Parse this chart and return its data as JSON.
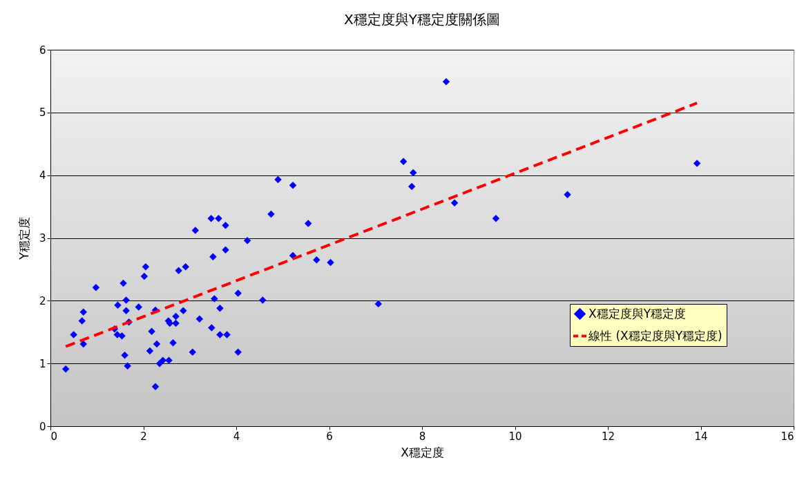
{
  "chart_data": {
    "type": "scatter",
    "title": "X穩定度與Y穩定度關係圖",
    "xlabel": "X穩定度",
    "ylabel": "Y穩定度",
    "xlim": [
      0,
      16
    ],
    "xticks": [
      0,
      2,
      4,
      6,
      8,
      10,
      12,
      14,
      16
    ],
    "ylim": [
      0,
      6
    ],
    "yticks": [
      0,
      1,
      2,
      3,
      4,
      5,
      6
    ],
    "grid": "y",
    "legend": "right",
    "series": [
      {
        "name": "X穩定度與Y穩定度",
        "color": "#0000ff",
        "marker": "diamond",
        "x": [
          0.33,
          0.5,
          0.68,
          0.71,
          0.71,
          0.98,
          1.38,
          1.44,
          1.45,
          1.54,
          1.57,
          1.6,
          1.63,
          1.63,
          1.66,
          1.69,
          1.9,
          2.02,
          2.05,
          2.18,
          2.14,
          2.26,
          2.26,
          2.29,
          2.35,
          2.42,
          2.55,
          2.54,
          2.57,
          2.64,
          2.7,
          2.7,
          2.76,
          2.86,
          2.91,
          3.06,
          3.12,
          3.21,
          3.46,
          3.47,
          3.5,
          3.53,
          3.62,
          3.65,
          3.65,
          3.77,
          3.77,
          3.8,
          4.04,
          4.04,
          4.24,
          4.57,
          4.75,
          4.9,
          5.22,
          5.22,
          5.55,
          5.73,
          6.03,
          7.06,
          7.6,
          7.81,
          7.78,
          8.52,
          8.7,
          9.59,
          11.13,
          13.92
        ],
        "values": [
          0.91,
          1.46,
          1.68,
          1.82,
          1.31,
          2.21,
          1.55,
          1.46,
          1.93,
          1.44,
          2.28,
          1.13,
          2.01,
          1.84,
          0.96,
          1.66,
          1.9,
          2.39,
          2.54,
          1.51,
          1.2,
          1.85,
          0.63,
          1.31,
          1.0,
          1.05,
          1.05,
          1.68,
          1.64,
          1.33,
          1.64,
          1.75,
          2.48,
          1.84,
          2.54,
          1.18,
          3.12,
          1.71,
          3.31,
          1.57,
          2.7,
          2.03,
          3.31,
          1.88,
          1.46,
          3.2,
          2.81,
          1.46,
          2.12,
          1.18,
          2.96,
          2.01,
          3.38,
          3.93,
          3.84,
          2.72,
          3.23,
          2.65,
          2.61,
          1.95,
          4.22,
          4.04,
          3.82,
          5.49,
          3.56,
          3.31,
          3.69,
          4.19
        ]
      },
      {
        "name": "線性 (X穩定度與Y穩定度)",
        "color": "#ff0000",
        "type": "line",
        "line_style": "dashed",
        "x": [
          0.33,
          13.92
        ],
        "values": [
          1.27,
          5.15
        ]
      }
    ]
  }
}
